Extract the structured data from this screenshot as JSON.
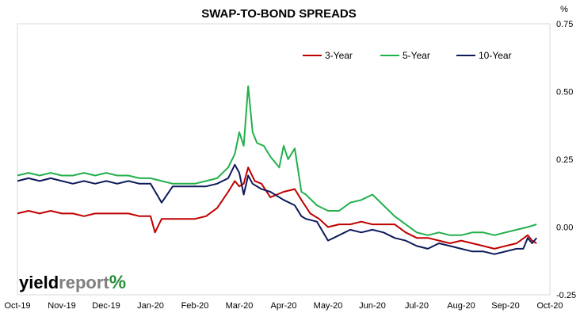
{
  "chart_data": {
    "type": "line",
    "title": "SWAP-TO-BOND SPREADS",
    "y_unit": "%",
    "xlabel": "",
    "ylabel": "",
    "ylim": [
      -0.25,
      0.75
    ],
    "y_ticks": [
      "0.75",
      "0.50",
      "0.25",
      "0.00",
      "-0.25"
    ],
    "y_tick_values": [
      0.75,
      0.5,
      0.25,
      0.0,
      -0.25
    ],
    "x_ticks": [
      "Oct-19",
      "Nov-19",
      "Dec-19",
      "Jan-20",
      "Feb-20",
      "Mar-20",
      "Apr-20",
      "May-20",
      "Jun-20",
      "Jul-20",
      "Aug-20",
      "Sep-20",
      "Oct-20"
    ],
    "x_tick_months": [
      0,
      1,
      2,
      3,
      4,
      5,
      6,
      7,
      8,
      9,
      10,
      11,
      12
    ],
    "grid": false,
    "legend_placement": "top-right",
    "series": [
      {
        "name": "3-Year",
        "color": "#c00000",
        "x": [
          0,
          0.25,
          0.5,
          0.75,
          1,
          1.25,
          1.5,
          1.75,
          2,
          2.25,
          2.5,
          2.75,
          3,
          3.1,
          3.25,
          3.5,
          3.75,
          4,
          4.25,
          4.5,
          4.75,
          4.9,
          5,
          5.1,
          5.2,
          5.35,
          5.5,
          5.7,
          6,
          6.25,
          6.4,
          6.6,
          6.8,
          7,
          7.25,
          7.5,
          7.75,
          8,
          8.25,
          8.5,
          8.75,
          9,
          9.25,
          9.5,
          9.75,
          10,
          10.25,
          10.5,
          10.75,
          11,
          11.25,
          11.5,
          11.6,
          11.7
        ],
        "values": [
          0.05,
          0.06,
          0.05,
          0.06,
          0.05,
          0.05,
          0.04,
          0.05,
          0.05,
          0.05,
          0.05,
          0.04,
          0.04,
          -0.02,
          0.03,
          0.03,
          0.03,
          0.03,
          0.04,
          0.07,
          0.13,
          0.17,
          0.15,
          0.16,
          0.22,
          0.17,
          0.16,
          0.11,
          0.13,
          0.14,
          0.1,
          0.05,
          0.03,
          0.0,
          0.01,
          0.01,
          0.02,
          0.01,
          0.01,
          0.01,
          -0.02,
          -0.04,
          -0.04,
          -0.05,
          -0.06,
          -0.05,
          -0.06,
          -0.07,
          -0.08,
          -0.07,
          -0.06,
          -0.03,
          -0.05,
          -0.06
        ]
      },
      {
        "name": "5-Year",
        "color": "#22b04b",
        "x": [
          0,
          0.25,
          0.5,
          0.75,
          1,
          1.25,
          1.5,
          1.75,
          2,
          2.25,
          2.5,
          2.75,
          3,
          3.25,
          3.5,
          3.75,
          4,
          4.25,
          4.5,
          4.75,
          4.9,
          5,
          5.1,
          5.2,
          5.3,
          5.4,
          5.55,
          5.7,
          5.9,
          6,
          6.1,
          6.25,
          6.4,
          6.5,
          6.75,
          7,
          7.25,
          7.5,
          7.75,
          8,
          8.25,
          8.5,
          8.75,
          9,
          9.25,
          9.5,
          9.75,
          10,
          10.25,
          10.5,
          10.75,
          11,
          11.25,
          11.5,
          11.7
        ],
        "values": [
          0.19,
          0.2,
          0.19,
          0.2,
          0.19,
          0.19,
          0.2,
          0.19,
          0.2,
          0.19,
          0.19,
          0.18,
          0.18,
          0.17,
          0.16,
          0.16,
          0.16,
          0.17,
          0.18,
          0.22,
          0.27,
          0.35,
          0.3,
          0.52,
          0.35,
          0.31,
          0.3,
          0.26,
          0.22,
          0.3,
          0.25,
          0.29,
          0.13,
          0.12,
          0.08,
          0.06,
          0.06,
          0.09,
          0.1,
          0.12,
          0.08,
          0.04,
          0.01,
          -0.02,
          -0.03,
          -0.02,
          -0.03,
          -0.03,
          -0.02,
          -0.02,
          -0.03,
          -0.02,
          -0.01,
          0.0,
          0.01
        ]
      },
      {
        "name": "10-Year",
        "color": "#0e1a5a",
        "x": [
          0,
          0.25,
          0.5,
          0.75,
          1,
          1.25,
          1.5,
          1.75,
          2,
          2.25,
          2.5,
          2.75,
          3,
          3.25,
          3.5,
          3.75,
          4,
          4.25,
          4.5,
          4.75,
          4.9,
          5,
          5.1,
          5.2,
          5.3,
          5.5,
          5.7,
          6,
          6.25,
          6.4,
          6.5,
          6.75,
          7,
          7.25,
          7.5,
          7.75,
          8,
          8.25,
          8.5,
          8.75,
          9,
          9.25,
          9.5,
          9.75,
          10,
          10.25,
          10.5,
          10.75,
          11,
          11.25,
          11.4,
          11.5,
          11.6,
          11.7
        ],
        "values": [
          0.17,
          0.18,
          0.17,
          0.18,
          0.17,
          0.16,
          0.17,
          0.16,
          0.17,
          0.16,
          0.17,
          0.16,
          0.16,
          0.09,
          0.15,
          0.15,
          0.15,
          0.15,
          0.16,
          0.18,
          0.23,
          0.2,
          0.12,
          0.19,
          0.16,
          0.14,
          0.13,
          0.1,
          0.08,
          0.04,
          0.03,
          0.02,
          -0.05,
          -0.03,
          -0.01,
          -0.02,
          -0.01,
          -0.02,
          -0.04,
          -0.05,
          -0.07,
          -0.08,
          -0.06,
          -0.07,
          -0.08,
          -0.09,
          -0.09,
          -0.1,
          -0.09,
          -0.08,
          -0.08,
          -0.04,
          -0.06,
          -0.04
        ]
      }
    ]
  },
  "logo": {
    "text_part1": "yield",
    "text_part2": "report",
    "symbol": "%"
  }
}
